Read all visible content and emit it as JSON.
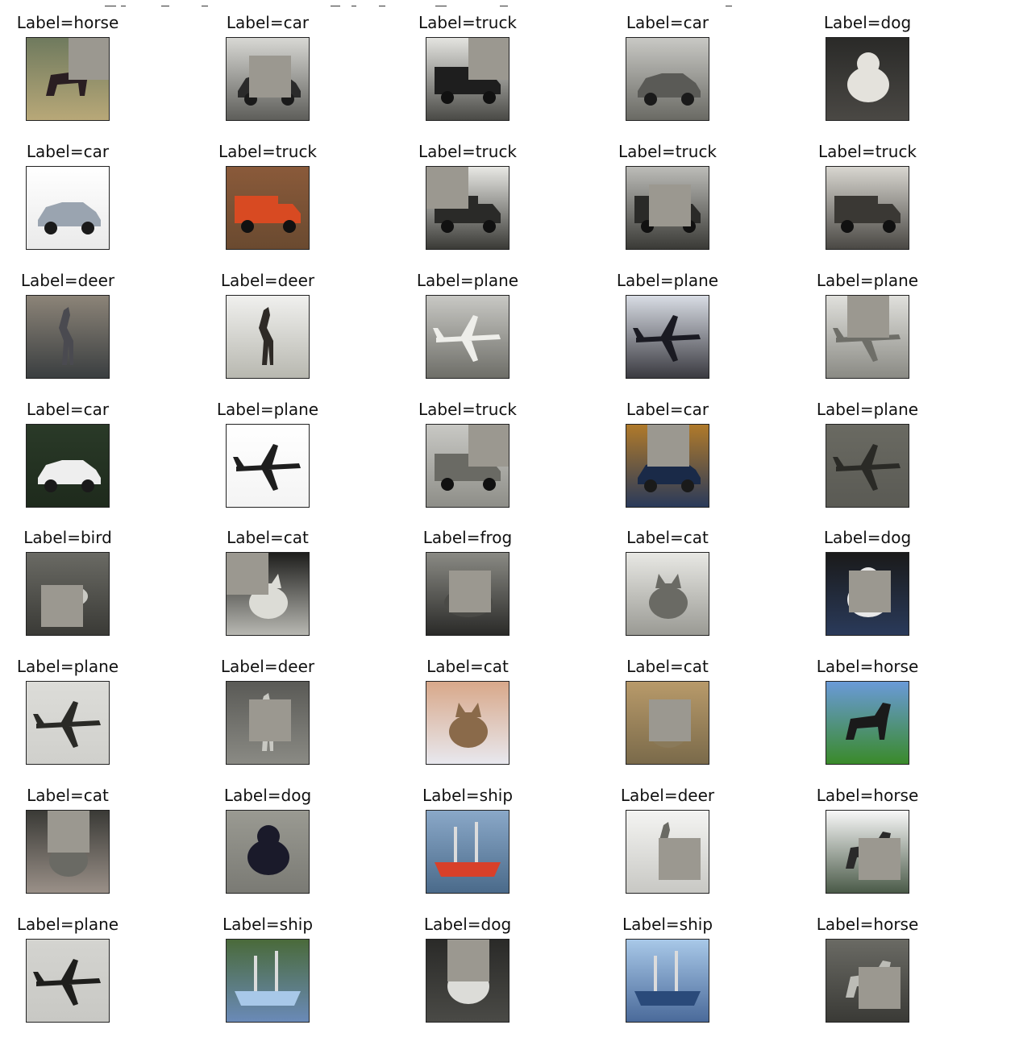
{
  "figure": {
    "cells": [
      {
        "label": "Label=horse",
        "subject": "horse",
        "bg": [
          "#6f7a5e",
          "#b8a878"
        ],
        "fg": "#2a1e22",
        "occluded": true,
        "occ": "top-right"
      },
      {
        "label": "Label=car",
        "subject": "car",
        "bg": [
          "#d8d8d4",
          "#5e5e5a"
        ],
        "fg": "#2a2a2a",
        "occluded": true,
        "occ": "center"
      },
      {
        "label": "Label=truck",
        "subject": "truck",
        "bg": [
          "#e4e4e0",
          "#4a4a46"
        ],
        "fg": "#1e1e1e",
        "occluded": true,
        "occ": "top-right"
      },
      {
        "label": "Label=car",
        "subject": "car",
        "bg": [
          "#c8c8c4",
          "#6a6a64"
        ],
        "fg": "#5a5a56",
        "occluded": false,
        "occ": "none"
      },
      {
        "label": "Label=dog",
        "subject": "dog",
        "bg": [
          "#2a2a28",
          "#4a4844"
        ],
        "fg": "#e4e2dc",
        "occluded": false,
        "occ": "none"
      },
      {
        "label": "Label=car",
        "subject": "car",
        "bg": [
          "#ffffff",
          "#eaeaea"
        ],
        "fg": "#9aa4b0",
        "occluded": false,
        "occ": "none"
      },
      {
        "label": "Label=truck",
        "subject": "truck",
        "bg": [
          "#8a5a3a",
          "#6a4a30"
        ],
        "fg": "#d84a22",
        "occluded": false,
        "occ": "none"
      },
      {
        "label": "Label=truck",
        "subject": "truck",
        "bg": [
          "#e8e8e4",
          "#3a3a36"
        ],
        "fg": "#2a2a28",
        "occluded": true,
        "occ": "top-left"
      },
      {
        "label": "Label=truck",
        "subject": "truck",
        "bg": [
          "#bcbcb8",
          "#3a3a36"
        ],
        "fg": "#2a2a28",
        "occluded": true,
        "occ": "center"
      },
      {
        "label": "Label=truck",
        "subject": "truck",
        "bg": [
          "#d8d6d0",
          "#4a4844"
        ],
        "fg": "#3a3834",
        "occluded": false,
        "occ": "none"
      },
      {
        "label": "Label=deer",
        "subject": "deer",
        "bg": [
          "#8c8478",
          "#3a3e40"
        ],
        "fg": "#4a4a50",
        "occluded": false,
        "occ": "none"
      },
      {
        "label": "Label=deer",
        "subject": "deer",
        "bg": [
          "#f0f0ee",
          "#b8b8b0"
        ],
        "fg": "#2e2a26",
        "occluded": false,
        "occ": "none"
      },
      {
        "label": "Label=plane",
        "subject": "plane",
        "bg": [
          "#c8c8c4",
          "#6e6e68"
        ],
        "fg": "#eeeeea",
        "occluded": false,
        "occ": "none"
      },
      {
        "label": "Label=plane",
        "subject": "plane",
        "bg": [
          "#d8dce4",
          "#3a3a40"
        ],
        "fg": "#1a1a22",
        "occluded": false,
        "occ": "none"
      },
      {
        "label": "Label=plane",
        "subject": "plane",
        "bg": [
          "#e0e0dc",
          "#8a8a84"
        ],
        "fg": "#6e6e68",
        "occluded": true,
        "occ": "top-center"
      },
      {
        "label": "Label=car",
        "subject": "car",
        "bg": [
          "#2a3a28",
          "#1e2a1c"
        ],
        "fg": "#eeeeee",
        "occluded": false,
        "occ": "none"
      },
      {
        "label": "Label=plane",
        "subject": "plane",
        "bg": [
          "#ffffff",
          "#f4f4f4"
        ],
        "fg": "#1e1e1e",
        "occluded": false,
        "occ": "none"
      },
      {
        "label": "Label=truck",
        "subject": "truck",
        "bg": [
          "#c8c8c4",
          "#8e8e88"
        ],
        "fg": "#6a6a64",
        "occluded": true,
        "occ": "top-right"
      },
      {
        "label": "Label=car",
        "subject": "car",
        "bg": [
          "#b07a2a",
          "#2a3a5a"
        ],
        "fg": "#1a2a48",
        "occluded": true,
        "occ": "top-center"
      },
      {
        "label": "Label=plane",
        "subject": "plane",
        "bg": [
          "#6a6a62",
          "#5a5a54"
        ],
        "fg": "#2a2a26",
        "occluded": false,
        "occ": "none"
      },
      {
        "label": "Label=bird",
        "subject": "bird",
        "bg": [
          "#6a6a64",
          "#3a3a36"
        ],
        "fg": "#cacac4",
        "occluded": true,
        "occ": "bottom-left"
      },
      {
        "label": "Label=cat",
        "subject": "cat",
        "bg": [
          "#1e1e1c",
          "#b8b8b2"
        ],
        "fg": "#dcdcd6",
        "occluded": true,
        "occ": "top-left"
      },
      {
        "label": "Label=frog",
        "subject": "frog",
        "bg": [
          "#8a8a84",
          "#2a2a28"
        ],
        "fg": "#4a4a46",
        "occluded": true,
        "occ": "center"
      },
      {
        "label": "Label=cat",
        "subject": "cat",
        "bg": [
          "#e8e8e4",
          "#9a9a94"
        ],
        "fg": "#6a6a64",
        "occluded": false,
        "occ": "none"
      },
      {
        "label": "Label=dog",
        "subject": "dog",
        "bg": [
          "#1a1a1a",
          "#2a3a5a"
        ],
        "fg": "#e8e8e8",
        "occluded": true,
        "occ": "center"
      },
      {
        "label": "Label=plane",
        "subject": "plane",
        "bg": [
          "#dcdcd8",
          "#d0d0cc"
        ],
        "fg": "#2a2a26",
        "occluded": false,
        "occ": "none"
      },
      {
        "label": "Label=deer",
        "subject": "deer",
        "bg": [
          "#5a5a56",
          "#8a8a84"
        ],
        "fg": "#c8c8c2",
        "occluded": true,
        "occ": "center"
      },
      {
        "label": "Label=cat",
        "subject": "cat",
        "bg": [
          "#d8a88a",
          "#e8e8ee"
        ],
        "fg": "#8a6a4a",
        "occluded": false,
        "occ": "none"
      },
      {
        "label": "Label=cat",
        "subject": "cat",
        "bg": [
          "#b89a6a",
          "#7a6a4a"
        ],
        "fg": "#8a7a5a",
        "occluded": true,
        "occ": "center"
      },
      {
        "label": "Label=horse",
        "subject": "horse",
        "bg": [
          "#6a9ad8",
          "#3a8a2a"
        ],
        "fg": "#1a1a1a",
        "occluded": false,
        "occ": "none"
      },
      {
        "label": "Label=cat",
        "subject": "cat",
        "bg": [
          "#3a3a36",
          "#9a9088"
        ],
        "fg": "#6a6a64",
        "occluded": true,
        "occ": "top-center"
      },
      {
        "label": "Label=dog",
        "subject": "dog",
        "bg": [
          "#9a9a92",
          "#7a7a74"
        ],
        "fg": "#1a1a2a",
        "occluded": false,
        "occ": "none"
      },
      {
        "label": "Label=ship",
        "subject": "ship",
        "bg": [
          "#8aa8c8",
          "#4a6a8a"
        ],
        "fg": "#d8402a",
        "occluded": false,
        "occ": "none"
      },
      {
        "label": "Label=deer",
        "subject": "deer",
        "bg": [
          "#f4f4f2",
          "#c8c8c4"
        ],
        "fg": "#6a6a64",
        "occluded": true,
        "occ": "bottom-center"
      },
      {
        "label": "Label=horse",
        "subject": "horse",
        "bg": [
          "#f8f8f8",
          "#4a5a48"
        ],
        "fg": "#2a2a2a",
        "occluded": true,
        "occ": "bottom-center"
      },
      {
        "label": "Label=plane",
        "subject": "plane",
        "bg": [
          "#d4d4d0",
          "#c8c8c4"
        ],
        "fg": "#1e1e1c",
        "occluded": false,
        "occ": "none"
      },
      {
        "label": "Label=ship",
        "subject": "ship",
        "bg": [
          "#4a6a3a",
          "#6a8ab8"
        ],
        "fg": "#a8c8e8",
        "occluded": false,
        "occ": "none"
      },
      {
        "label": "Label=dog",
        "subject": "dog",
        "bg": [
          "#2a2a28",
          "#4a4a46"
        ],
        "fg": "#dcdcd8",
        "occluded": true,
        "occ": "top-center"
      },
      {
        "label": "Label=ship",
        "subject": "ship",
        "bg": [
          "#a8c8e8",
          "#4a6a9a"
        ],
        "fg": "#2a4a7a",
        "occluded": false,
        "occ": "none"
      },
      {
        "label": "Label=horse",
        "subject": "horse",
        "bg": [
          "#6a6a64",
          "#3a3a36"
        ],
        "fg": "#bcbcb6",
        "occluded": true,
        "occ": "bottom-center"
      }
    ]
  },
  "colors": {
    "occluder": "#9b9890",
    "border": "#222222",
    "text": "#111111"
  }
}
